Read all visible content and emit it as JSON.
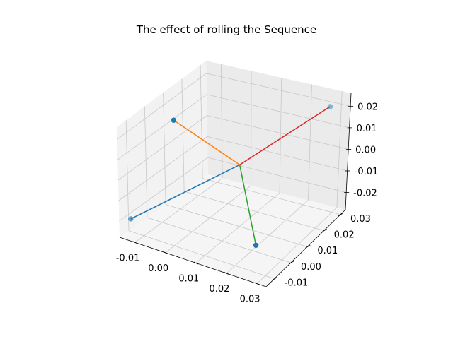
{
  "chart_data": {
    "type": "line",
    "title": "The effect of rolling the Sequence",
    "projection": "3d",
    "grid": true,
    "xlim": [
      -0.015,
      0.033
    ],
    "ylim": [
      -0.015,
      0.033
    ],
    "zlim": [
      -0.028,
      0.026
    ],
    "x_ticks": [
      "-0.01",
      "0.00",
      "0.01",
      "0.02",
      "0.03"
    ],
    "y_ticks": [
      "-0.01",
      "0.00",
      "0.01",
      "0.02",
      "0.03"
    ],
    "z_ticks": [
      "-0.02",
      "-0.01",
      "0.00",
      "0.01",
      "0.02"
    ],
    "points": [
      {
        "x": -0.013,
        "y": -0.012,
        "z": -0.02
      },
      {
        "x": -0.013,
        "y": 0.012,
        "z": 0.012
      },
      {
        "x": 0.028,
        "y": -0.012,
        "z": -0.015
      },
      {
        "x": 0.028,
        "y": 0.03,
        "z": 0.02
      }
    ],
    "segments": [
      {
        "from": [
          -0.013,
          -0.012,
          -0.02
        ],
        "to": [
          0.01,
          0.01,
          0.0
        ],
        "color": "#1f77b4"
      },
      {
        "from": [
          -0.013,
          0.012,
          0.012
        ],
        "to": [
          0.01,
          0.01,
          0.0
        ],
        "color": "#ff7f0e"
      },
      {
        "from": [
          0.01,
          0.01,
          0.0
        ],
        "to": [
          0.028,
          -0.012,
          -0.015
        ],
        "color": "#2ca02c"
      },
      {
        "from": [
          0.01,
          0.01,
          0.0
        ],
        "to": [
          0.028,
          0.03,
          0.02
        ],
        "color": "#d62728"
      }
    ],
    "marker_color": "#1f77b4"
  }
}
